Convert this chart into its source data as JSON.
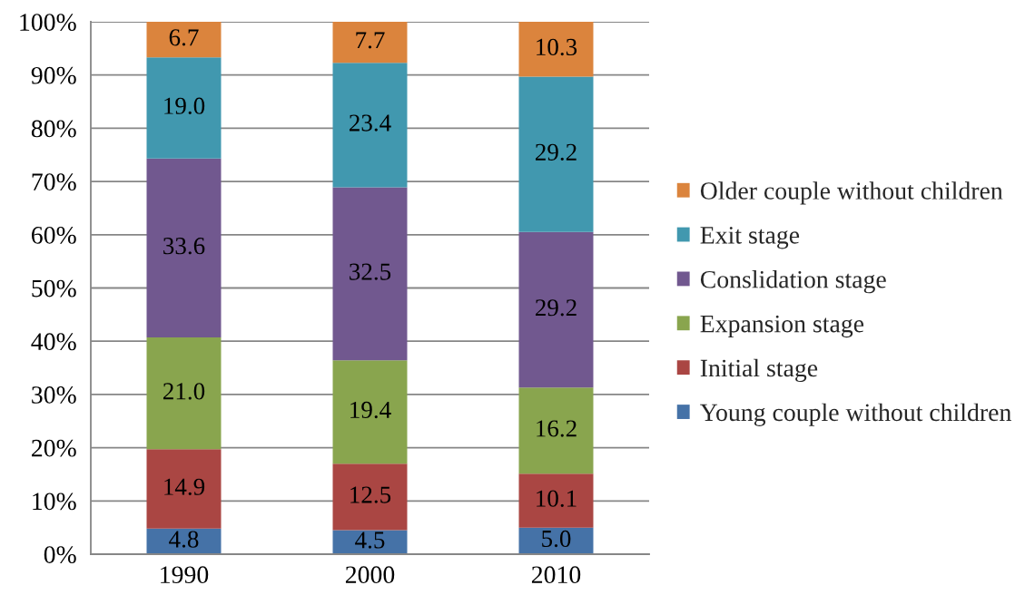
{
  "chart_data": {
    "type": "bar",
    "stacked": true,
    "categories": [
      "1990",
      "2000",
      "2010"
    ],
    "series": [
      {
        "name": "Young couple without children",
        "color": "#4572a7",
        "values": [
          4.8,
          4.5,
          5.0
        ],
        "value_labels": [
          "4.8",
          "4.5",
          "5.0"
        ]
      },
      {
        "name": "Initial stage",
        "color": "#aa4643",
        "values": [
          14.9,
          12.5,
          10.1
        ],
        "value_labels": [
          "14.9",
          "12.5",
          "10.1"
        ]
      },
      {
        "name": "Expansion stage",
        "color": "#89a54e",
        "values": [
          21.0,
          19.4,
          16.2
        ],
        "value_labels": [
          "21.0",
          "19.4",
          "16.2"
        ]
      },
      {
        "name": "Conslidation stage",
        "color": "#71588f",
        "values": [
          33.6,
          32.5,
          29.2
        ],
        "value_labels": [
          "33.6",
          "32.5",
          "29.2"
        ]
      },
      {
        "name": "Exit stage",
        "color": "#4198af",
        "values": [
          19.0,
          23.4,
          29.2
        ],
        "value_labels": [
          "19.0",
          "23.4",
          "29.2"
        ]
      },
      {
        "name": "Older couple without children",
        "color": "#db843d",
        "values": [
          6.7,
          7.7,
          10.3
        ],
        "value_labels": [
          "6.7",
          "7.7",
          "10.3"
        ]
      }
    ],
    "ylim": [
      0,
      100
    ],
    "yticks": [
      {
        "value": 0,
        "label": "0%"
      },
      {
        "value": 10,
        "label": "10%"
      },
      {
        "value": 20,
        "label": "20%"
      },
      {
        "value": 30,
        "label": "30%"
      },
      {
        "value": 40,
        "label": "40%"
      },
      {
        "value": 50,
        "label": "50%"
      },
      {
        "value": 60,
        "label": "60%"
      },
      {
        "value": 70,
        "label": "70%"
      },
      {
        "value": 80,
        "label": "80%"
      },
      {
        "value": 90,
        "label": "90%"
      },
      {
        "value": 100,
        "label": "100%"
      }
    ],
    "grid": "y",
    "legend": "right"
  }
}
